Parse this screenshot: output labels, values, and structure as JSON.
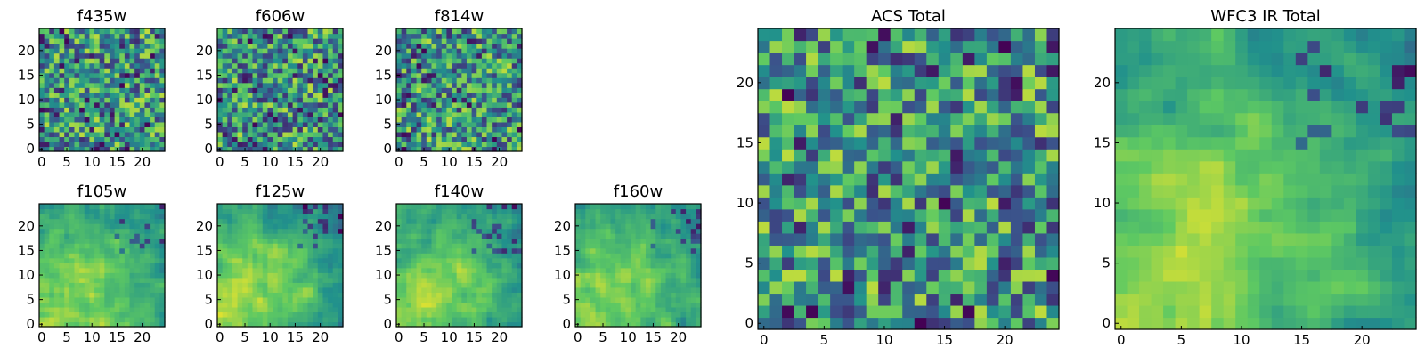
{
  "chart_data": [
    {
      "type": "heatmap",
      "title": "f435w",
      "xticks": [
        0,
        5,
        10,
        15,
        20
      ],
      "yticks": [
        0,
        5,
        10,
        15,
        20
      ],
      "xlim": [
        -0.5,
        24.5
      ],
      "ylim": [
        -0.5,
        24.5
      ],
      "grid_size": 25,
      "pattern": "uniform-noise",
      "seed": 11
    },
    {
      "type": "heatmap",
      "title": "f606w",
      "xticks": [
        0,
        5,
        10,
        15,
        20
      ],
      "yticks": [
        0,
        5,
        10,
        15,
        20
      ],
      "xlim": [
        -0.5,
        24.5
      ],
      "ylim": [
        -0.5,
        24.5
      ],
      "grid_size": 25,
      "pattern": "uniform-noise",
      "seed": 23
    },
    {
      "type": "heatmap",
      "title": "f814w",
      "xticks": [
        0,
        5,
        10,
        15,
        20
      ],
      "yticks": [
        0,
        5,
        10,
        15,
        20
      ],
      "xlim": [
        -0.5,
        24.5
      ],
      "ylim": [
        -0.5,
        24.5
      ],
      "grid_size": 25,
      "pattern": "uniform-noise",
      "seed": 37
    },
    {
      "type": "heatmap",
      "title": "f105w",
      "xticks": [
        0,
        5,
        10,
        15,
        20
      ],
      "yticks": [
        0,
        5,
        10,
        15,
        20
      ],
      "xlim": [
        -0.5,
        24.5
      ],
      "ylim": [
        -0.5,
        24.5
      ],
      "grid_size": 25,
      "pattern": "smooth-bright-lower-left",
      "seed": 41
    },
    {
      "type": "heatmap",
      "title": "f125w",
      "xticks": [
        0,
        5,
        10,
        15,
        20
      ],
      "yticks": [
        0,
        5,
        10,
        15,
        20
      ],
      "xlim": [
        -0.5,
        24.5
      ],
      "ylim": [
        -0.5,
        24.5
      ],
      "grid_size": 25,
      "pattern": "smooth-bright-lower-left",
      "seed": 53
    },
    {
      "type": "heatmap",
      "title": "f140w",
      "xticks": [
        0,
        5,
        10,
        15,
        20
      ],
      "yticks": [
        0,
        5,
        10,
        15,
        20
      ],
      "xlim": [
        -0.5,
        24.5
      ],
      "ylim": [
        -0.5,
        24.5
      ],
      "grid_size": 25,
      "pattern": "smooth-bright-lower-left",
      "seed": 67
    },
    {
      "type": "heatmap",
      "title": "f160w",
      "xticks": [
        0,
        5,
        10,
        15,
        20
      ],
      "yticks": [
        0,
        5,
        10,
        15,
        20
      ],
      "xlim": [
        -0.5,
        24.5
      ],
      "ylim": [
        -0.5,
        24.5
      ],
      "grid_size": 25,
      "pattern": "smooth-bright-lower-left",
      "seed": 79
    },
    {
      "type": "heatmap",
      "title": "ACS Total",
      "xticks": [
        0,
        5,
        10,
        15,
        20
      ],
      "yticks": [
        0,
        5,
        10,
        15,
        20
      ],
      "xlim": [
        -0.5,
        24.5
      ],
      "ylim": [
        -0.5,
        24.5
      ],
      "grid_size": 25,
      "pattern": "uniform-noise",
      "seed": 97
    },
    {
      "type": "heatmap",
      "title": "WFC3 IR Total",
      "xticks": [
        0,
        5,
        10,
        15,
        20
      ],
      "yticks": [
        0,
        5,
        10,
        15,
        20
      ],
      "xlim": [
        -0.5,
        24.5
      ],
      "ylim": [
        -0.5,
        24.5
      ],
      "grid_size": 25,
      "pattern": "smooth-bright-lower-left",
      "seed": 101
    }
  ],
  "colormap": [
    "#440154",
    "#3b528b",
    "#21918c",
    "#5ec962",
    "#fde725"
  ]
}
